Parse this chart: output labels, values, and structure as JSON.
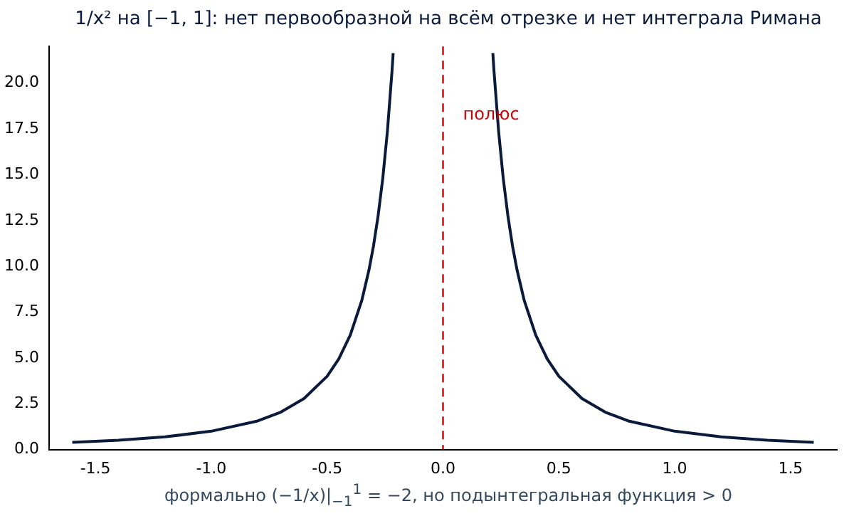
{
  "chart_data": {
    "type": "line",
    "title": "1/x² на [−1, 1]: нет первообразной на всём отрезке и нет интеграла Римана",
    "xlabel": "формально (−1/x)|$_{−1}$$^{1}$ = −2, но подынтегральная функция > 0",
    "series": [
      {
        "color": "#0a1a3a",
        "x": [
          -1.6,
          -1.4,
          -1.2,
          -1.0,
          -0.8,
          -0.7,
          -0.6,
          -0.5,
          -0.45,
          -0.4,
          -0.35,
          -0.32,
          -0.3,
          -0.28,
          -0.26,
          -0.24,
          -0.22,
          -0.215
        ],
        "values": [
          0.39,
          0.51,
          0.69,
          1.0,
          1.56,
          2.04,
          2.78,
          4.0,
          4.94,
          6.25,
          8.16,
          9.77,
          11.11,
          12.76,
          14.79,
          17.36,
          20.66,
          21.63
        ]
      },
      {
        "color": "#0a1a3a",
        "x": [
          0.215,
          0.22,
          0.24,
          0.26,
          0.28,
          0.3,
          0.32,
          0.35,
          0.4,
          0.45,
          0.5,
          0.6,
          0.7,
          0.8,
          1.0,
          1.2,
          1.4,
          1.6
        ],
        "values": [
          21.63,
          20.66,
          17.36,
          14.79,
          12.76,
          11.11,
          9.77,
          8.16,
          6.25,
          4.94,
          4.0,
          2.78,
          2.04,
          1.56,
          1.0,
          0.69,
          0.51,
          0.39
        ]
      }
    ],
    "xlim": [
      -1.7,
      1.7
    ],
    "ylim": [
      0,
      22
    ],
    "xticks": [
      {
        "value": -1.5,
        "label": "-1.5"
      },
      {
        "value": -1.0,
        "label": "-1.0"
      },
      {
        "value": -0.5,
        "label": "-0.5"
      },
      {
        "value": 0,
        "label": "0.0"
      },
      {
        "value": 0.5,
        "label": "0.5"
      },
      {
        "value": 1.0,
        "label": "1.0"
      },
      {
        "value": 1.5,
        "label": "1.5"
      }
    ],
    "yticks": [
      {
        "value": 0,
        "label": "0.0"
      },
      {
        "value": 2.5,
        "label": "2.5"
      },
      {
        "value": 5,
        "label": "5.0"
      },
      {
        "value": 7.5,
        "label": "7.5"
      },
      {
        "value": 10,
        "label": "10.0"
      },
      {
        "value": 12.5,
        "label": "12.5"
      },
      {
        "value": 15,
        "label": "15.0"
      },
      {
        "value": 17.5,
        "label": "17.5"
      },
      {
        "value": 20,
        "label": "20.0"
      }
    ],
    "ref_lines": [
      {
        "axis": "x",
        "value": 0,
        "color": "#cc0000",
        "line_style": "dashed",
        "label": "полюс"
      }
    ],
    "grid": false,
    "legend": false,
    "marker": "none",
    "line_style": "solid"
  }
}
